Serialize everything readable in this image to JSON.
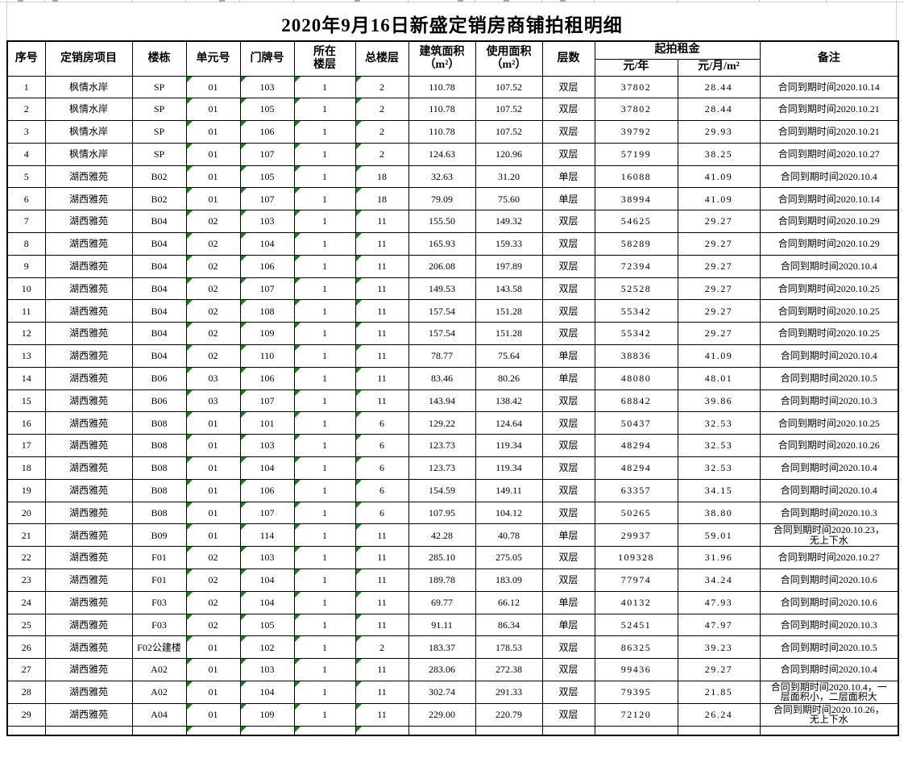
{
  "title": "2020年9月16日新盛定销房商铺拍租明细",
  "colors": {
    "error_indicator_green": "#168216",
    "grid_border": "#000000",
    "faint_gridline": "#d2d2d2"
  },
  "table": {
    "column_keys": [
      "no",
      "project",
      "building",
      "unit",
      "door",
      "floor",
      "total_floors",
      "build_area",
      "use_area",
      "layers",
      "rent_year",
      "rent_month_m2",
      "remark"
    ],
    "headers": {
      "no": "序号",
      "project": "定销房项目",
      "building": "楼栋",
      "unit": "单元号",
      "door": "门牌号",
      "floor": "所在\n楼层",
      "total_floors": "总楼层",
      "build_area": "建筑面积\n（m²）",
      "use_area": "使用面积\n（m²）",
      "layers": "层数",
      "rent_group": "起拍租金",
      "rent_year": "元/年",
      "rent_month_m2": "元/月/m²",
      "remark": "备注"
    },
    "error_indicator_columns": [
      3,
      4,
      5,
      6
    ],
    "rows": [
      [
        "1",
        "枫情水岸",
        "SP",
        "01",
        "103",
        "1",
        "2",
        "110.78",
        "107.52",
        "双层",
        "37802",
        "28.44",
        "合同到期时间2020.10.14"
      ],
      [
        "2",
        "枫情水岸",
        "SP",
        "01",
        "105",
        "1",
        "2",
        "110.78",
        "107.52",
        "双层",
        "37802",
        "28.44",
        "合同到期时间2020.10.21"
      ],
      [
        "3",
        "枫情水岸",
        "SP",
        "01",
        "106",
        "1",
        "2",
        "110.78",
        "107.52",
        "双层",
        "39792",
        "29.93",
        "合同到期时间2020.10.21"
      ],
      [
        "4",
        "枫情水岸",
        "SP",
        "01",
        "107",
        "1",
        "2",
        "124.63",
        "120.96",
        "双层",
        "57199",
        "38.25",
        "合同到期时间2020.10.27"
      ],
      [
        "5",
        "湖西雅苑",
        "B02",
        "01",
        "105",
        "1",
        "18",
        "32.63",
        "31.20",
        "单层",
        "16088",
        "41.09",
        "合同到期时间2020.10.4"
      ],
      [
        "6",
        "湖西雅苑",
        "B02",
        "01",
        "107",
        "1",
        "18",
        "79.09",
        "75.60",
        "单层",
        "38994",
        "41.09",
        "合同到期时间2020.10.14"
      ],
      [
        "7",
        "湖西雅苑",
        "B04",
        "02",
        "103",
        "1",
        "11",
        "155.50",
        "149.32",
        "双层",
        "54625",
        "29.27",
        "合同到期时间2020.10.29"
      ],
      [
        "8",
        "湖西雅苑",
        "B04",
        "02",
        "104",
        "1",
        "11",
        "165.93",
        "159.33",
        "双层",
        "58289",
        "29.27",
        "合同到期时间2020.10.29"
      ],
      [
        "9",
        "湖西雅苑",
        "B04",
        "02",
        "106",
        "1",
        "11",
        "206.08",
        "197.89",
        "双层",
        "72394",
        "29.27",
        "合同到期时间2020.10.4"
      ],
      [
        "10",
        "湖西雅苑",
        "B04",
        "02",
        "107",
        "1",
        "11",
        "149.53",
        "143.58",
        "双层",
        "52528",
        "29.27",
        "合同到期时间2020.10.25"
      ],
      [
        "11",
        "湖西雅苑",
        "B04",
        "02",
        "108",
        "1",
        "11",
        "157.54",
        "151.28",
        "双层",
        "55342",
        "29.27",
        "合同到期时间2020.10.25"
      ],
      [
        "12",
        "湖西雅苑",
        "B04",
        "02",
        "109",
        "1",
        "11",
        "157.54",
        "151.28",
        "双层",
        "55342",
        "29.27",
        "合同到期时间2020.10.25"
      ],
      [
        "13",
        "湖西雅苑",
        "B04",
        "02",
        "110",
        "1",
        "11",
        "78.77",
        "75.64",
        "单层",
        "38836",
        "41.09",
        "合同到期时间2020.10.4"
      ],
      [
        "14",
        "湖西雅苑",
        "B06",
        "03",
        "106",
        "1",
        "11",
        "83.46",
        "80.26",
        "单层",
        "48080",
        "48.01",
        "合同到期时间2020.10.5"
      ],
      [
        "15",
        "湖西雅苑",
        "B06",
        "03",
        "107",
        "1",
        "11",
        "143.94",
        "138.42",
        "双层",
        "68842",
        "39.86",
        "合同到期时间2020.10.3"
      ],
      [
        "16",
        "湖西雅苑",
        "B08",
        "01",
        "101",
        "1",
        "6",
        "129.22",
        "124.64",
        "双层",
        "50437",
        "32.53",
        "合同到期时间2020.10.25"
      ],
      [
        "17",
        "湖西雅苑",
        "B08",
        "01",
        "103",
        "1",
        "6",
        "123.73",
        "119.34",
        "双层",
        "48294",
        "32.53",
        "合同到期时间2020.10.26"
      ],
      [
        "18",
        "湖西雅苑",
        "B08",
        "01",
        "104",
        "1",
        "6",
        "123.73",
        "119.34",
        "双层",
        "48294",
        "32.53",
        "合同到期时间2020.10.4"
      ],
      [
        "19",
        "湖西雅苑",
        "B08",
        "01",
        "106",
        "1",
        "6",
        "154.59",
        "149.11",
        "双层",
        "63357",
        "34.15",
        "合同到期时间2020.10.4"
      ],
      [
        "20",
        "湖西雅苑",
        "B08",
        "01",
        "107",
        "1",
        "6",
        "107.95",
        "104.12",
        "双层",
        "50265",
        "38.80",
        "合同到期时间2020.10.3"
      ],
      [
        "21",
        "湖西雅苑",
        "B09",
        "01",
        "114",
        "1",
        "11",
        "42.28",
        "40.78",
        "单层",
        "29937",
        "59.01",
        "合同到期时间2020.10.23，无上下水"
      ],
      [
        "22",
        "湖西雅苑",
        "F01",
        "02",
        "103",
        "1",
        "11",
        "285.10",
        "275.05",
        "双层",
        "109328",
        "31.96",
        "合同到期时间2020.10.27"
      ],
      [
        "23",
        "湖西雅苑",
        "F01",
        "02",
        "104",
        "1",
        "11",
        "189.78",
        "183.09",
        "双层",
        "77974",
        "34.24",
        "合同到期时间2020.10.6"
      ],
      [
        "24",
        "湖西雅苑",
        "F03",
        "02",
        "104",
        "1",
        "11",
        "69.77",
        "66.12",
        "单层",
        "40132",
        "47.93",
        "合同到期时间2020.10.6"
      ],
      [
        "25",
        "湖西雅苑",
        "F03",
        "02",
        "105",
        "1",
        "11",
        "91.11",
        "86.34",
        "单层",
        "52451",
        "47.97",
        "合同到期时间2020.10.3"
      ],
      [
        "26",
        "湖西雅苑",
        "F02公建楼",
        "01",
        "102",
        "1",
        "2",
        "183.37",
        "178.53",
        "双层",
        "86325",
        "39.23",
        "合同到期时间2020.10.5"
      ],
      [
        "27",
        "湖西雅苑",
        "A02",
        "01",
        "103",
        "1",
        "11",
        "283.06",
        "272.38",
        "双层",
        "99436",
        "29.27",
        "合同到期时间2020.10.4"
      ],
      [
        "28",
        "湖西雅苑",
        "A02",
        "01",
        "104",
        "1",
        "11",
        "302.74",
        "291.33",
        "双层",
        "79395",
        "21.85",
        "合同到期时间2020.10.4，一层面积小，二层面积大"
      ],
      [
        "29",
        "湖西雅苑",
        "A04",
        "01",
        "109",
        "1",
        "11",
        "229.00",
        "220.79",
        "双层",
        "72120",
        "26.24",
        "合同到期时间2020.10.26，无上下水"
      ]
    ]
  }
}
